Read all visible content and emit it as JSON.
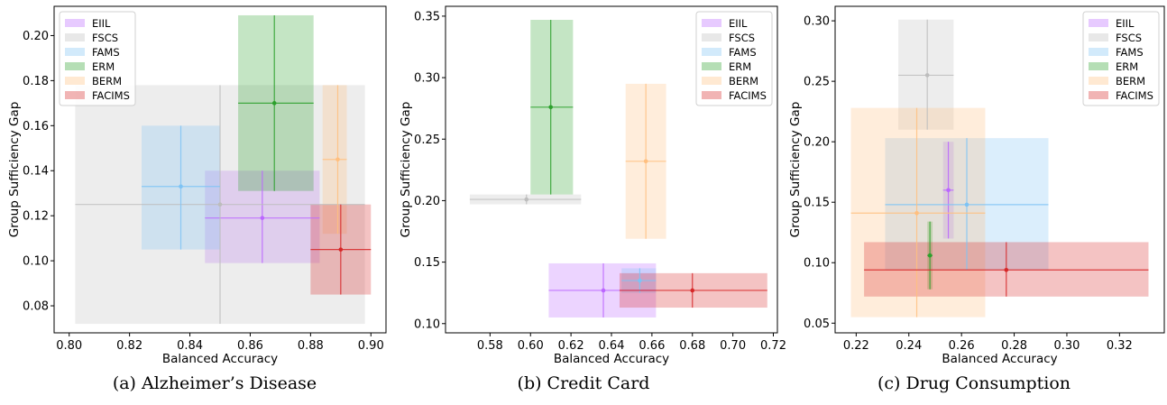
{
  "captions": [
    "(a) Alzheimer’s Disease",
    "(b) Credit Card",
    "(c) Drug Consumption"
  ],
  "colors": {
    "EIIL": "#bb66ff",
    "FSCS": "#bdbdbd",
    "FAMS": "#7ec3f4",
    "ERM": "#2ca02c",
    "BERM": "#ffbf7f",
    "FACIMS": "#d62728"
  },
  "chart_data": [
    {
      "type": "scatter",
      "title": "",
      "xlabel": "Balanced Accuracy",
      "ylabel": "Group Sufficiency Gap",
      "xlim": [
        0.795,
        0.905
      ],
      "ylim": [
        0.068,
        0.213
      ],
      "xticks": [
        0.8,
        0.82,
        0.84,
        0.86,
        0.88,
        0.9
      ],
      "xtick_labels": [
        "0.80",
        "0.82",
        "0.84",
        "0.86",
        "0.88",
        "0.90"
      ],
      "yticks": [
        0.08,
        0.1,
        0.12,
        0.14,
        0.16,
        0.18,
        0.2
      ],
      "ytick_labels": [
        "0.08",
        "0.10",
        "0.12",
        "0.14",
        "0.16",
        "0.18",
        "0.20"
      ],
      "legend": "top-left",
      "grid": false,
      "series": [
        {
          "name": "EIIL",
          "x": 0.864,
          "y": 0.119,
          "x_range": [
            0.845,
            0.883
          ],
          "y_range": [
            0.099,
            0.14
          ]
        },
        {
          "name": "FSCS",
          "x": 0.85,
          "y": 0.125,
          "x_range": [
            0.802,
            0.898
          ],
          "y_range": [
            0.072,
            0.178
          ]
        },
        {
          "name": "FAMS",
          "x": 0.837,
          "y": 0.133,
          "x_range": [
            0.824,
            0.85
          ],
          "y_range": [
            0.105,
            0.16
          ]
        },
        {
          "name": "ERM",
          "x": 0.868,
          "y": 0.17,
          "x_range": [
            0.856,
            0.881
          ],
          "y_range": [
            0.131,
            0.209
          ]
        },
        {
          "name": "BERM",
          "x": 0.889,
          "y": 0.145,
          "x_range": [
            0.884,
            0.892
          ],
          "y_range": [
            0.112,
            0.178
          ]
        },
        {
          "name": "FACIMS",
          "x": 0.89,
          "y": 0.105,
          "x_range": [
            0.88,
            0.9
          ],
          "y_range": [
            0.085,
            0.125
          ]
        }
      ]
    },
    {
      "type": "scatter",
      "title": "",
      "xlabel": "Balanced Accuracy",
      "ylabel": "Group Sufficiency Gap",
      "xlim": [
        0.558,
        0.722
      ],
      "ylim": [
        0.0925,
        0.358
      ],
      "xticks": [
        0.58,
        0.6,
        0.62,
        0.64,
        0.66,
        0.68,
        0.7,
        0.72
      ],
      "xtick_labels": [
        "0.58",
        "0.60",
        "0.62",
        "0.64",
        "0.66",
        "0.68",
        "0.70",
        "0.72"
      ],
      "yticks": [
        0.1,
        0.15,
        0.2,
        0.25,
        0.3,
        0.35
      ],
      "ytick_labels": [
        "0.10",
        "0.15",
        "0.20",
        "0.25",
        "0.30",
        "0.35"
      ],
      "legend": "top-right",
      "grid": false,
      "series": [
        {
          "name": "EIIL",
          "x": 0.636,
          "y": 0.127,
          "x_range": [
            0.609,
            0.662
          ],
          "y_range": [
            0.105,
            0.149
          ]
        },
        {
          "name": "FSCS",
          "x": 0.598,
          "y": 0.201,
          "x_range": [
            0.57,
            0.625
          ],
          "y_range": [
            0.197,
            0.205
          ]
        },
        {
          "name": "FAMS",
          "x": 0.654,
          "y": 0.135,
          "x_range": [
            0.645,
            0.662
          ],
          "y_range": [
            0.125,
            0.145
          ]
        },
        {
          "name": "ERM",
          "x": 0.61,
          "y": 0.276,
          "x_range": [
            0.6,
            0.621
          ],
          "y_range": [
            0.205,
            0.347
          ]
        },
        {
          "name": "BERM",
          "x": 0.657,
          "y": 0.232,
          "x_range": [
            0.647,
            0.667
          ],
          "y_range": [
            0.169,
            0.295
          ]
        },
        {
          "name": "FACIMS",
          "x": 0.68,
          "y": 0.127,
          "x_range": [
            0.644,
            0.717
          ],
          "y_range": [
            0.113,
            0.141
          ]
        }
      ]
    },
    {
      "type": "scatter",
      "title": "",
      "xlabel": "Balanced Accuracy",
      "ylabel": "Group Sufficiency Gap",
      "xlim": [
        0.212,
        0.337
      ],
      "ylim": [
        0.042,
        0.312
      ],
      "xticks": [
        0.22,
        0.24,
        0.26,
        0.28,
        0.3,
        0.32
      ],
      "xtick_labels": [
        "0.22",
        "0.24",
        "0.26",
        "0.28",
        "0.30",
        "0.32"
      ],
      "yticks": [
        0.05,
        0.1,
        0.15,
        0.2,
        0.25,
        0.3
      ],
      "ytick_labels": [
        "0.05",
        "0.10",
        "0.15",
        "0.20",
        "0.25",
        "0.30"
      ],
      "legend": "top-right",
      "grid": false,
      "series": [
        {
          "name": "EIIL",
          "x": 0.255,
          "y": 0.16,
          "x_range": [
            0.253,
            0.257
          ],
          "y_range": [
            0.12,
            0.2
          ]
        },
        {
          "name": "FSCS",
          "x": 0.247,
          "y": 0.255,
          "x_range": [
            0.236,
            0.257
          ],
          "y_range": [
            0.21,
            0.301
          ]
        },
        {
          "name": "FAMS",
          "x": 0.262,
          "y": 0.148,
          "x_range": [
            0.231,
            0.293
          ],
          "y_range": [
            0.094,
            0.203
          ]
        },
        {
          "name": "ERM",
          "x": 0.248,
          "y": 0.106,
          "x_range": [
            0.247,
            0.249
          ],
          "y_range": [
            0.078,
            0.134
          ]
        },
        {
          "name": "BERM",
          "x": 0.243,
          "y": 0.141,
          "x_range": [
            0.218,
            0.269
          ],
          "y_range": [
            0.055,
            0.228
          ]
        },
        {
          "name": "FACIMS",
          "x": 0.277,
          "y": 0.094,
          "x_range": [
            0.223,
            0.331
          ],
          "y_range": [
            0.072,
            0.117
          ]
        }
      ]
    }
  ]
}
